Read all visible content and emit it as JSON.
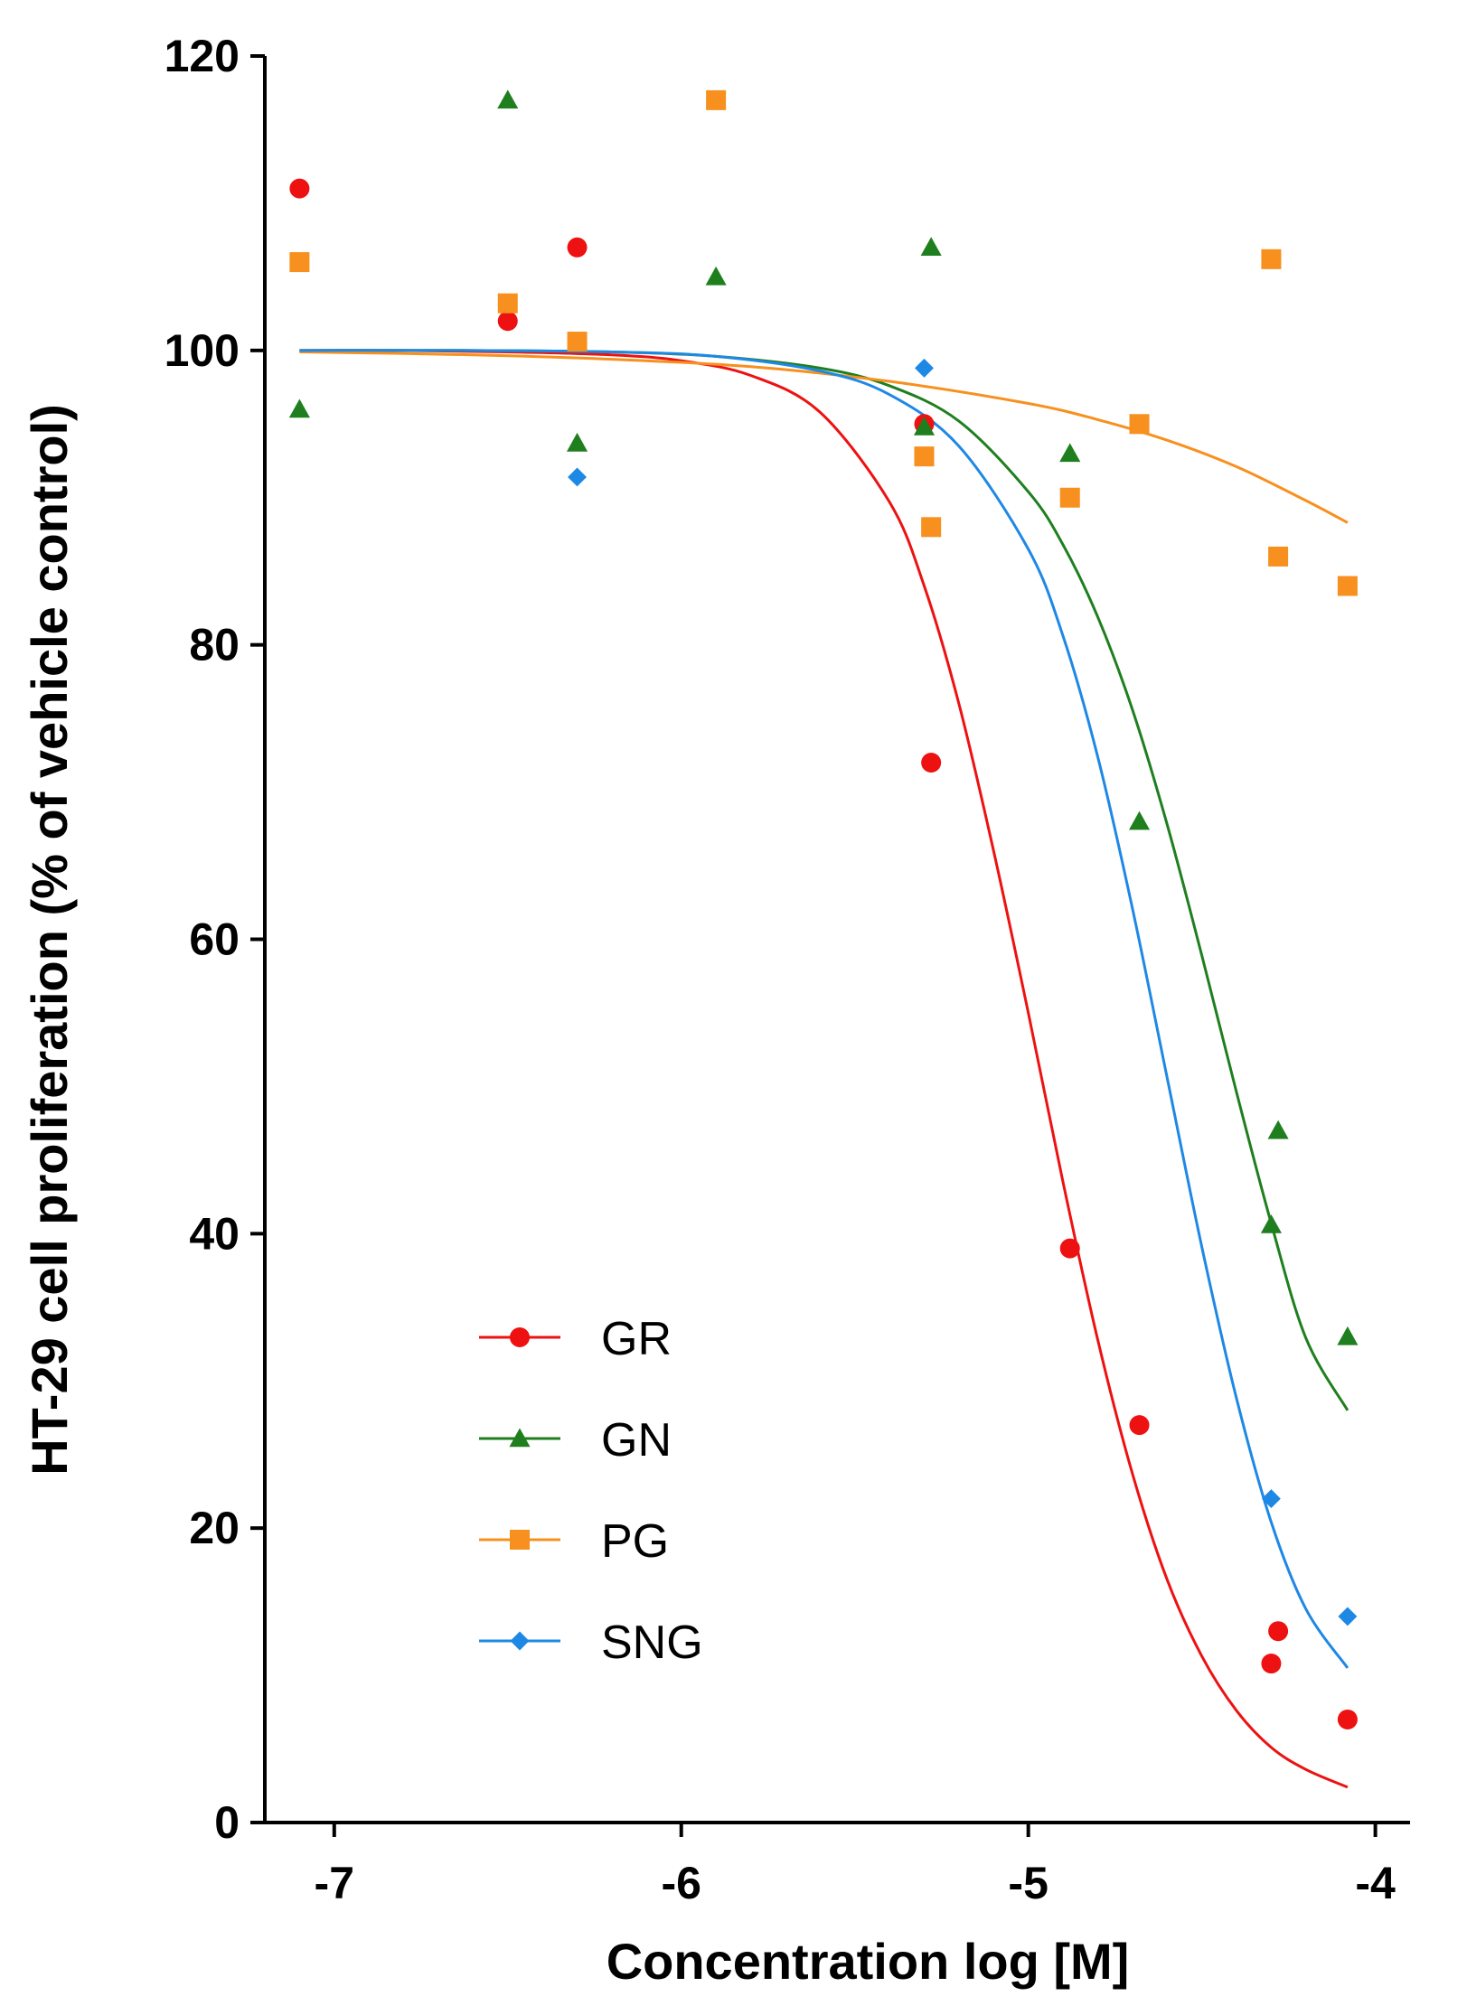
{
  "chart_data": {
    "type": "scatter",
    "title": "",
    "xlabel": "Concentration log [M]",
    "ylabel": "HT-29 cell proliferation (% of vehicle control)",
    "xlim": [
      -7.2,
      -3.9
    ],
    "ylim": [
      0,
      120
    ],
    "xticks": [
      -7,
      -6,
      -5,
      -4
    ],
    "xtick_labels": [
      "-7",
      "-6",
      "-5",
      "-4"
    ],
    "yticks": [
      0,
      20,
      40,
      60,
      80,
      100,
      120
    ],
    "ytick_labels": [
      "0",
      "20",
      "40",
      "60",
      "80",
      "100",
      "120"
    ],
    "grid": false,
    "legend_position": "bottom-left",
    "series": [
      {
        "name": "GR",
        "color": "#ee1111",
        "marker": "circle",
        "points": [
          {
            "x": -7.1,
            "y": 111
          },
          {
            "x": -6.5,
            "y": 102
          },
          {
            "x": -6.3,
            "y": 107
          },
          {
            "x": -5.3,
            "y": 95
          },
          {
            "x": -5.28,
            "y": 72
          },
          {
            "x": -4.88,
            "y": 39
          },
          {
            "x": -4.68,
            "y": 27
          },
          {
            "x": -4.28,
            "y": 13
          },
          {
            "x": -4.3,
            "y": 10.8
          },
          {
            "x": -4.08,
            "y": 7
          }
        ],
        "curve": {
          "x": [
            -7.1,
            -6.8,
            -6.5,
            -6.2,
            -6.0,
            -5.8,
            -5.6,
            -5.4,
            -5.3,
            -5.2,
            -5.1,
            -5.0,
            -4.9,
            -4.8,
            -4.7,
            -4.6,
            -4.5,
            -4.4,
            -4.3,
            -4.2,
            -4.08
          ],
          "y": [
            100,
            100,
            99.9,
            99.7,
            99.3,
            98.3,
            95.8,
            89.7,
            84,
            76,
            66,
            55,
            43.5,
            32.8,
            23.7,
            16.5,
            11.3,
            7.6,
            5.1,
            3.6,
            2.4
          ]
        }
      },
      {
        "name": "GN",
        "color": "#1f7f1f",
        "marker": "triangle",
        "points": [
          {
            "x": -7.1,
            "y": 96
          },
          {
            "x": -6.5,
            "y": 117
          },
          {
            "x": -6.3,
            "y": 93.7
          },
          {
            "x": -5.9,
            "y": 105
          },
          {
            "x": -5.28,
            "y": 107
          },
          {
            "x": -5.3,
            "y": 94.8
          },
          {
            "x": -4.88,
            "y": 93
          },
          {
            "x": -4.68,
            "y": 68
          },
          {
            "x": -4.28,
            "y": 47
          },
          {
            "x": -4.3,
            "y": 40.6
          },
          {
            "x": -4.08,
            "y": 33
          }
        ],
        "curve": {
          "x": [
            -7.1,
            -6.6,
            -6.2,
            -5.9,
            -5.6,
            -5.4,
            -5.2,
            -5.0,
            -4.9,
            -4.8,
            -4.7,
            -4.6,
            -4.5,
            -4.4,
            -4.3,
            -4.2,
            -4.08
          ],
          "y": [
            100,
            100,
            99.9,
            99.6,
            98.8,
            97.6,
            95.2,
            90.4,
            86.8,
            81.9,
            75.6,
            67.8,
            58.9,
            49.6,
            40.7,
            32.9,
            28
          ]
        }
      },
      {
        "name": "PG",
        "color": "#f7901e",
        "marker": "square",
        "points": [
          {
            "x": -7.1,
            "y": 106
          },
          {
            "x": -6.5,
            "y": 103.2
          },
          {
            "x": -6.3,
            "y": 100.6
          },
          {
            "x": -5.9,
            "y": 117
          },
          {
            "x": -5.3,
            "y": 92.8
          },
          {
            "x": -5.28,
            "y": 88
          },
          {
            "x": -4.88,
            "y": 90
          },
          {
            "x": -4.68,
            "y": 95
          },
          {
            "x": -4.3,
            "y": 106.2
          },
          {
            "x": -4.28,
            "y": 86
          },
          {
            "x": -4.08,
            "y": 84
          }
        ],
        "curve": {
          "x": [
            -7.1,
            -6.6,
            -6.2,
            -5.8,
            -5.4,
            -5.0,
            -4.8,
            -4.6,
            -4.4,
            -4.2,
            -4.08
          ],
          "y": [
            99.9,
            99.7,
            99.4,
            98.9,
            97.9,
            96.4,
            95.3,
            93.9,
            92.1,
            89.8,
            88.3
          ]
        }
      },
      {
        "name": "SNG",
        "color": "#1e88e5",
        "marker": "diamond",
        "points": [
          {
            "x": -6.3,
            "y": 91.4
          },
          {
            "x": -5.3,
            "y": 98.8
          },
          {
            "x": -4.3,
            "y": 22
          },
          {
            "x": -4.08,
            "y": 14
          }
        ],
        "curve": {
          "x": [
            -7.1,
            -6.6,
            -6.2,
            -5.9,
            -5.6,
            -5.4,
            -5.2,
            -5.0,
            -4.9,
            -4.8,
            -4.7,
            -4.6,
            -4.5,
            -4.4,
            -4.3,
            -4.2,
            -4.08
          ],
          "y": [
            100,
            100,
            99.9,
            99.6,
            98.6,
            97,
            93.5,
            86.5,
            80.6,
            72.4,
            62.1,
            50.6,
            39.1,
            28.8,
            20.4,
            14.5,
            10.5
          ]
        }
      }
    ]
  }
}
